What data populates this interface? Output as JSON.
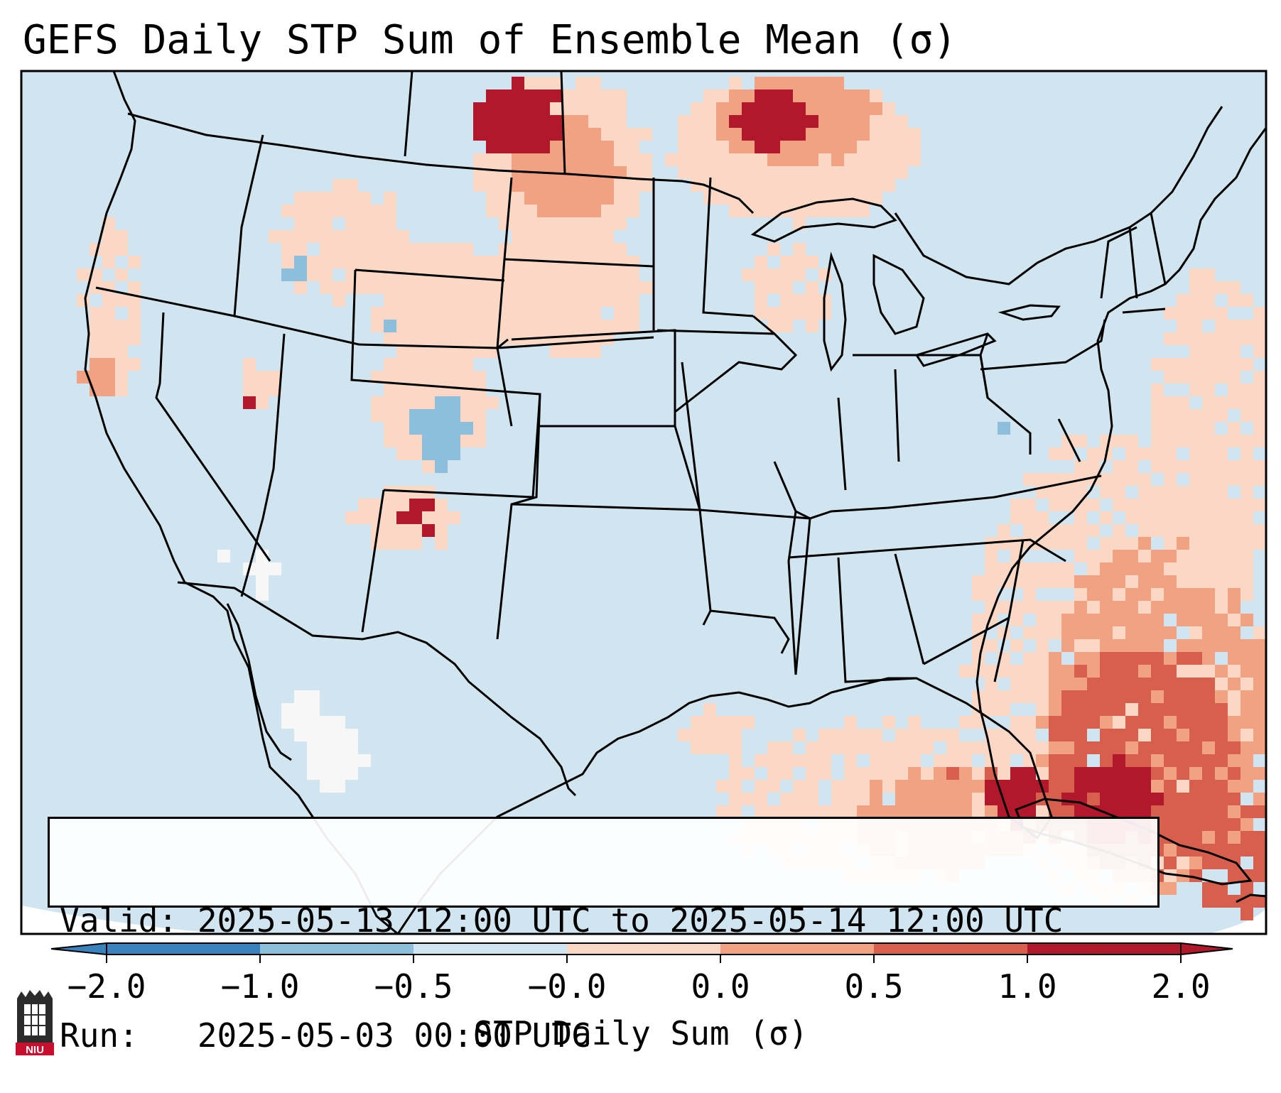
{
  "title": "GEFS Daily STP Sum of Ensemble Mean (σ)",
  "info": {
    "valid_line": "Valid: 2025-05-13 12:00 UTC to 2025-05-14 12:00 UTC",
    "run_line": "Run:   2025-05-03 00:00 UTC"
  },
  "colorbar": {
    "label": "STP Daily Sum (σ)",
    "ticks": [
      "−2.0",
      "−1.0",
      "−0.5",
      "−0.0",
      "0.0",
      "0.5",
      "1.0",
      "2.0"
    ],
    "colors": [
      "#3a82bd",
      "#8dbfdd",
      "#d1e5f0",
      "#f7f7f7",
      "#fbd8c5",
      "#f0a283",
      "#d6604d",
      "#b2182b"
    ]
  },
  "map": {
    "background_color": "#d1e5f0",
    "region": "Contiguous United States, southern Canada, northern Mexico, Gulf of Mexico, Caribbean"
  },
  "logo": {
    "text": "NIU"
  }
}
